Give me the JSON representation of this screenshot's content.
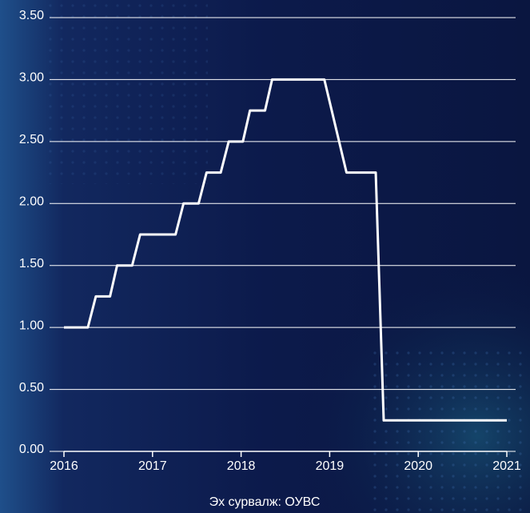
{
  "chart_data": {
    "type": "line",
    "x": [
      2016.0,
      2016.27,
      2016.36,
      2016.52,
      2016.6,
      2016.77,
      2016.86,
      2017.26,
      2017.35,
      2017.52,
      2017.61,
      2017.77,
      2017.86,
      2018.02,
      2018.1,
      2018.27,
      2018.35,
      2018.94,
      2019.19,
      2019.52,
      2019.61,
      2021.0
    ],
    "series": [
      {
        "color": "#ffffff",
        "values": [
          1.0,
          1.0,
          1.25,
          1.25,
          1.5,
          1.5,
          1.75,
          1.75,
          2.0,
          2.0,
          2.25,
          2.25,
          2.5,
          2.5,
          2.75,
          2.75,
          3.0,
          3.0,
          2.25,
          2.25,
          0.25,
          0.25
        ]
      }
    ],
    "xlim": [
      2016,
      2021
    ],
    "xticks": [
      2016,
      2017,
      2018,
      2019,
      2020,
      2021
    ],
    "ylim": [
      0,
      3.5
    ],
    "yticks": [
      {
        "value": 0,
        "label": "0.00"
      },
      {
        "value": 0.5,
        "label": "0.50"
      },
      {
        "value": 1,
        "label": "1.00"
      },
      {
        "value": 1.5,
        "label": "1.50"
      },
      {
        "value": 2,
        "label": "2.00"
      },
      {
        "value": 2.5,
        "label": "2.50"
      },
      {
        "value": 3,
        "label": "3.00"
      },
      {
        "value": 3.5,
        "label": "3.50"
      }
    ],
    "grid": true,
    "source": "Эх сурвалж: ОУВС"
  }
}
